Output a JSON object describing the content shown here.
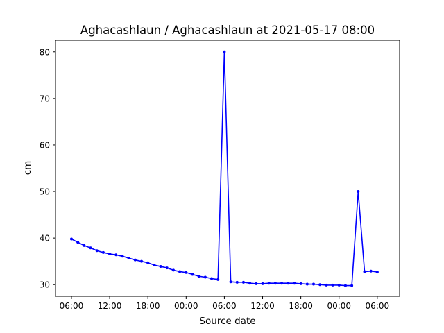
{
  "chart_data": {
    "type": "line",
    "title": "Aghacashlaun / Aghacashlaun at 2021-05-17 08:00",
    "xlabel": "Source date",
    "ylabel": "cm",
    "ylim": [
      27.5,
      82.5
    ],
    "yticks": [
      30,
      40,
      50,
      60,
      70,
      80
    ],
    "xlim": [
      -2.5,
      51.5
    ],
    "xticks": [
      {
        "value": 0,
        "label": "06:00"
      },
      {
        "value": 6,
        "label": "12:00"
      },
      {
        "value": 12,
        "label": "18:00"
      },
      {
        "value": 18,
        "label": "00:00"
      },
      {
        "value": 24,
        "label": "06:00"
      },
      {
        "value": 30,
        "label": "12:00"
      },
      {
        "value": 36,
        "label": "18:00"
      },
      {
        "value": 42,
        "label": "00:00"
      },
      {
        "value": 48,
        "label": "06:00"
      }
    ],
    "color": "#0000ff",
    "grid": false,
    "legend": "none",
    "series": [
      {
        "x": [
          0,
          1,
          2,
          3,
          4,
          5,
          6,
          7,
          8,
          9,
          10,
          11,
          12,
          13,
          14,
          15,
          16,
          17,
          18,
          19,
          20,
          21,
          22,
          23,
          24,
          25,
          26,
          27,
          28,
          29,
          30,
          31,
          32,
          33,
          34,
          35,
          36,
          37,
          38,
          39,
          40,
          41,
          42,
          43,
          44,
          45,
          46,
          47,
          48
        ],
        "values": [
          39.8,
          39.1,
          38.4,
          37.9,
          37.3,
          36.9,
          36.6,
          36.4,
          36.1,
          35.7,
          35.3,
          35.0,
          34.7,
          34.2,
          33.9,
          33.6,
          33.1,
          32.8,
          32.6,
          32.2,
          31.8,
          31.6,
          31.3,
          31.1,
          80.0,
          30.6,
          30.5,
          30.5,
          30.3,
          30.2,
          30.2,
          30.3,
          30.3,
          30.3,
          30.3,
          30.3,
          30.2,
          30.1,
          30.1,
          30.0,
          29.9,
          29.9,
          29.9,
          29.8,
          29.8,
          50.0,
          32.8,
          32.9,
          32.7
        ]
      }
    ]
  }
}
